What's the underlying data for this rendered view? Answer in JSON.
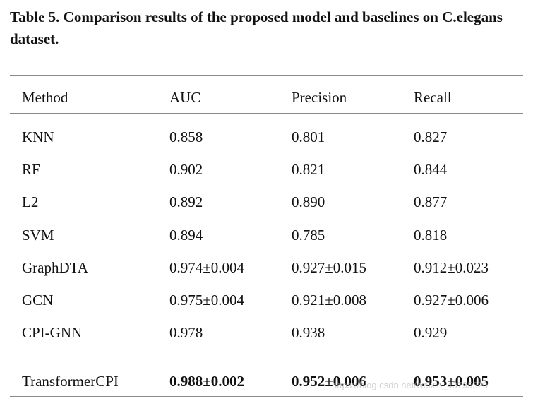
{
  "caption": "Table 5. Comparison results of the proposed model and baselines on C.elegans dataset.",
  "table": {
    "headers": [
      "Method",
      "AUC",
      "Precision",
      "Recall"
    ],
    "rows": [
      {
        "method": "KNN",
        "auc": "0.858",
        "precision": "0.801",
        "recall": "0.827",
        "bold": false
      },
      {
        "method": "RF",
        "auc": "0.902",
        "precision": "0.821",
        "recall": "0.844",
        "bold": false
      },
      {
        "method": "L2",
        "auc": "0.892",
        "precision": "0.890",
        "recall": "0.877",
        "bold": false
      },
      {
        "method": "SVM",
        "auc": "0.894",
        "precision": "0.785",
        "recall": "0.818",
        "bold": false
      },
      {
        "method": "GraphDTA",
        "auc": "0.974±0.004",
        "precision": "0.927±0.015",
        "recall": "0.912±0.023",
        "bold": false
      },
      {
        "method": "GCN",
        "auc": "0.975±0.004",
        "precision": "0.921±0.008",
        "recall": "0.927±0.006",
        "bold": false
      },
      {
        "method": "CPI-GNN",
        "auc": "0.978",
        "precision": "0.938",
        "recall": "0.929",
        "bold": false
      },
      {
        "method": "TransformerCPI",
        "auc": "0.988±0.002",
        "precision": "0.952±0.006",
        "recall": "0.953±0.005",
        "bold": true
      }
    ]
  },
  "watermark": "https://blog.csdn.net/weixin_43795320"
}
